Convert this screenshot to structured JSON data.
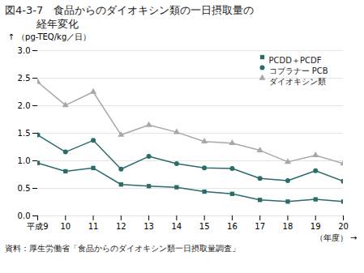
{
  "chart_data": {
    "type": "line",
    "title": "図4-3-7　食品からのダイオキシン類の一日摂取量の",
    "subtitle": "　　　経年変化",
    "caption": "資料：厚生労働省「食品からのダイオキシン類一日摂取量調査」",
    "xlabel": "（年度）",
    "ylabel": "（pg-TEQ/kg／日）",
    "x": [
      9,
      10,
      11,
      12,
      13,
      14,
      15,
      16,
      17,
      18,
      19,
      20
    ],
    "series": [
      {
        "name": "PCDD＋PCDF",
        "color": "#2b6b6b",
        "marker": "square",
        "values": [
          0.96,
          0.81,
          0.87,
          0.57,
          0.54,
          0.52,
          0.44,
          0.4,
          0.29,
          0.26,
          0.3,
          0.26
        ]
      },
      {
        "name": "コプラナー PCB",
        "color": "#2b6b6b",
        "marker": "circle",
        "values": [
          1.47,
          1.16,
          1.37,
          0.85,
          1.08,
          0.95,
          0.87,
          0.86,
          0.68,
          0.64,
          0.82,
          0.63
        ]
      },
      {
        "name": "ダイオキシン類",
        "color": "#a8a8a8",
        "marker": "triangle",
        "values": [
          2.43,
          2.01,
          2.25,
          1.47,
          1.65,
          1.52,
          1.35,
          1.32,
          1.19,
          0.98,
          1.1,
          0.95
        ]
      }
    ],
    "xlim": [
      9,
      20
    ],
    "xticks": [
      {
        "value": 9,
        "label": "平成9"
      },
      10,
      11,
      12,
      13,
      14,
      15,
      16,
      17,
      18,
      19,
      20
    ],
    "ylim": [
      0,
      3.0
    ],
    "yticks": [
      {
        "value": 0,
        "label": "0.0"
      },
      0.5,
      {
        "value": 1.0,
        "label": "1.0"
      },
      1.5,
      {
        "value": 2.0,
        "label": "2.0"
      },
      2.5,
      {
        "value": 3.0,
        "label": "3.0"
      }
    ],
    "grid": true,
    "legend": "upper right"
  }
}
